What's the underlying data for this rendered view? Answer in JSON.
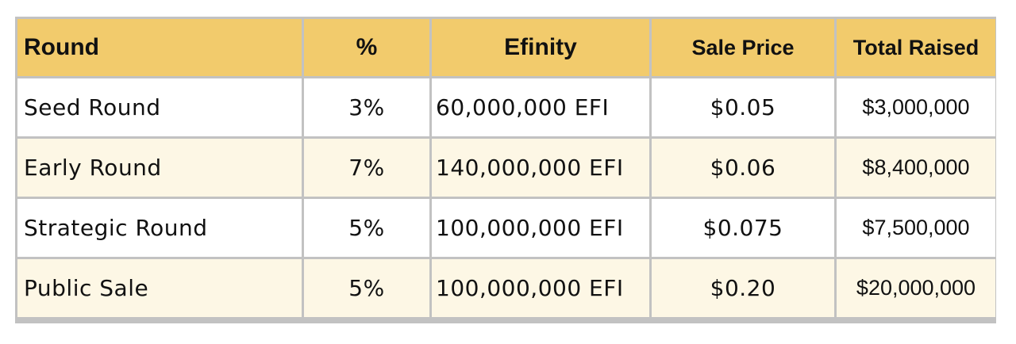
{
  "table": {
    "headers": {
      "round": "Round",
      "pct": "%",
      "efinity": "Efinity",
      "sale_price": "Sale Price",
      "total_raised": "Total Raised"
    },
    "rows": [
      {
        "round": "Seed Round",
        "pct": "3%",
        "efinity": "60,000,000 EFI",
        "sale_price": "$0.05",
        "total_raised": "$3,000,000"
      },
      {
        "round": "Early Round",
        "pct": "7%",
        "efinity": "140,000,000 EFI",
        "sale_price": "$0.06",
        "total_raised": "$8,400,000"
      },
      {
        "round": "Strategic Round",
        "pct": "5%",
        "efinity": "100,000,000 EFI",
        "sale_price": "$0.075",
        "total_raised": "$7,500,000"
      },
      {
        "round": "Public Sale",
        "pct": "5%",
        "efinity": "100,000,000 EFI",
        "sale_price": "$0.20",
        "total_raised": "$20,000,000"
      }
    ]
  },
  "colors": {
    "header_background": "#f2cb6c",
    "row_odd_background": "#ffffff",
    "row_even_background": "#fdf7e5",
    "border": "#c2c2c2"
  }
}
